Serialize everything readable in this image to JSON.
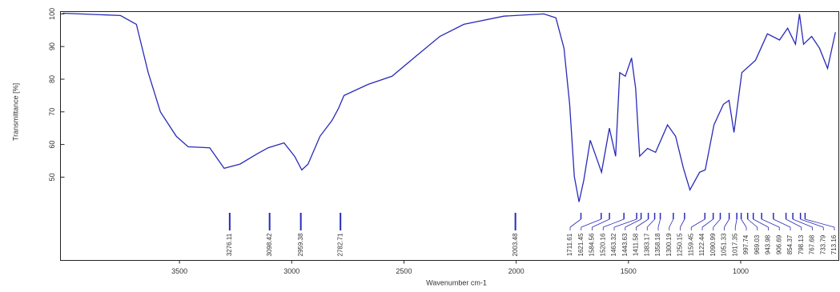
{
  "chart_data": {
    "type": "line",
    "xlabel": "Wavenumber cm-1",
    "ylabel": "Transmittance [%]",
    "xlim": [
      4030,
      563
    ],
    "ylim": [
      24.5,
      100.7
    ],
    "xticks": [
      3500,
      3000,
      2500,
      2000,
      1500,
      1000
    ],
    "yticks": [
      50,
      60,
      70,
      80,
      90,
      100
    ],
    "series": [
      {
        "color": "#2a2ab8",
        "x": [
          4020,
          3763,
          3692,
          3639,
          3585,
          3514,
          3461,
          3365,
          3301,
          3230,
          3158,
          3105,
          3034,
          2987,
          2955,
          2927,
          2874,
          2820,
          2792,
          2767,
          2660,
          2553,
          2447,
          2340,
          2233,
          2055,
          1877,
          1823,
          1787,
          1762,
          1741,
          1720,
          1699,
          1670,
          1645,
          1620,
          1585,
          1557,
          1539,
          1514,
          1486,
          1468,
          1450,
          1415,
          1379,
          1326,
          1290,
          1255,
          1226,
          1183,
          1158,
          1119,
          1077,
          1052,
          1030,
          995,
          934,
          881,
          827,
          791,
          756,
          738,
          720,
          684,
          649,
          613,
          578
        ],
        "values": [
          100.2,
          99.5,
          96.8,
          82,
          70,
          62.5,
          59.3,
          59,
          52.7,
          54,
          57,
          59,
          60.5,
          56.4,
          52.2,
          54,
          62.5,
          67.4,
          71,
          75,
          78.4,
          80.9,
          87,
          93.1,
          96.8,
          99.3,
          100,
          98.8,
          89.5,
          72.3,
          50.2,
          42.4,
          49,
          61.3,
          56.4,
          51.5,
          65,
          56.4,
          82,
          80.9,
          86.5,
          77.2,
          56.4,
          58.8,
          57.6,
          66,
          62.5,
          52.7,
          46.1,
          51.5,
          52.2,
          66,
          72.3,
          73.5,
          63.7,
          82,
          85.8,
          93.9,
          92,
          95.6,
          90.7,
          100,
          90.7,
          93.1,
          89.5,
          83.3,
          94.4
        ]
      }
    ],
    "peaks": [
      3276.11,
      3098.42,
      2959.38,
      2782.71,
      2003.48,
      1711.61,
      1621.45,
      1584.56,
      1520.16,
      1463.32,
      1443.63,
      1411.58,
      1383.17,
      1358.18,
      1300.19,
      1250.15,
      1159.45,
      1122.44,
      1090.99,
      1051.33,
      1017.35,
      997.74,
      969.03,
      943.98,
      906.69,
      854.37,
      798.13,
      767.68,
      733.79,
      713.16
    ]
  }
}
